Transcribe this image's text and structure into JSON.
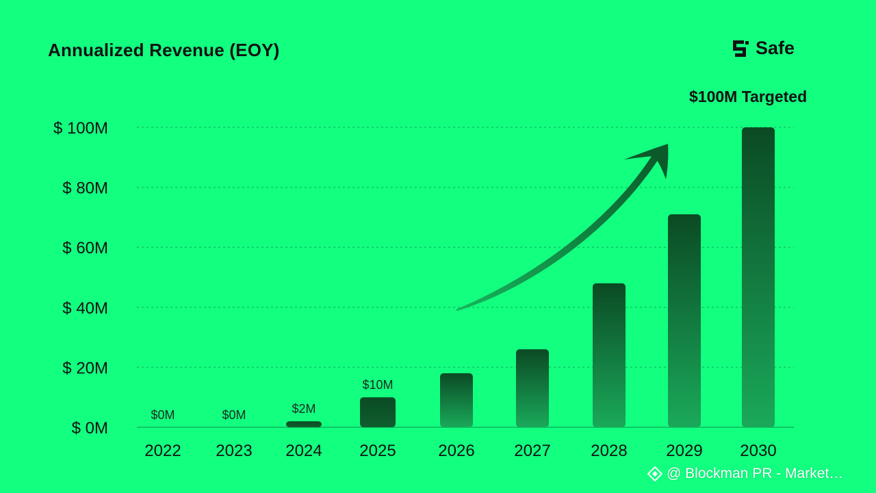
{
  "header": {
    "title": "Annualized Revenue (EOY)",
    "brand_name": "Safe",
    "target_label": "$100M Targeted"
  },
  "watermark": {
    "text": "@ Blockman PR - Market…",
    "icon": "binance-diamond-icon"
  },
  "colors": {
    "background": "#12ff80",
    "bar_dark": "#0b4a24",
    "bar_light": "#1aa95a",
    "grid": "#0fc765",
    "arrow": "#0d6f35",
    "text": "#121212"
  },
  "chart_data": {
    "type": "bar",
    "title": "Annualized Revenue (EOY)",
    "categories": [
      "2022",
      "2023",
      "2024",
      "2025",
      "2026",
      "2027",
      "2028",
      "2029",
      "2030"
    ],
    "values": [
      0,
      0,
      2,
      10,
      18,
      26,
      48,
      71,
      100
    ],
    "data_labels": [
      "$0M",
      "$0M",
      "$2M",
      "$10M",
      "",
      "",
      "",
      "",
      ""
    ],
    "yticks": [
      0,
      20,
      40,
      60,
      80,
      100
    ],
    "ytick_labels": [
      "$ 0M",
      "$ 20M",
      "$ 40M",
      "$ 60M",
      "$ 80M",
      "$ 100M"
    ],
    "ylim": [
      0,
      100
    ],
    "grid": true,
    "annotation": "$100M Targeted",
    "xlabel": "",
    "ylabel": ""
  }
}
